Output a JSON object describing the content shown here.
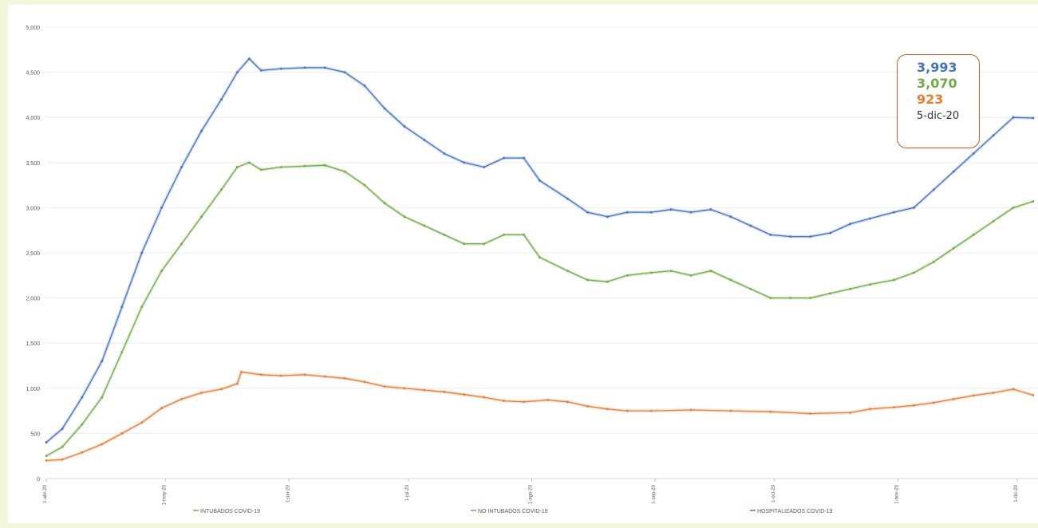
{
  "chart_data": {
    "type": "line",
    "title": "",
    "xlabel": "",
    "ylabel": "",
    "ylim": [
      0,
      5000
    ],
    "y_ticks": [
      "0",
      "500",
      "1,000",
      "1,500",
      "2,000",
      "2,500",
      "3,000",
      "3,500",
      "4,000",
      "4,500",
      "5,000"
    ],
    "y_tick_values": [
      0,
      500,
      1000,
      1500,
      2000,
      2500,
      3000,
      3500,
      4000,
      4500,
      5000
    ],
    "grid": true,
    "legend_position": "bottom",
    "x_tick_labels": [
      "1-abr-20",
      "1-may-20",
      "1-jun-20",
      "1-jul-20",
      "1-ago-20",
      "1-sep-20",
      "1-oct-20",
      "1-nov-20",
      "1-dic-20"
    ],
    "x_tick_dates": [
      "2020-04-01",
      "2020-05-01",
      "2020-06-01",
      "2020-07-01",
      "2020-08-01",
      "2020-09-01",
      "2020-10-01",
      "2020-11-01",
      "2020-12-01"
    ],
    "x_range": [
      "2020-04-01",
      "2020-12-05"
    ],
    "series": [
      {
        "name": "INTUBADOS COVID-19",
        "color": "#ed7d31",
        "points": [
          [
            "2020-04-01",
            200
          ],
          [
            "2020-04-05",
            210
          ],
          [
            "2020-04-10",
            290
          ],
          [
            "2020-04-15",
            380
          ],
          [
            "2020-04-20",
            500
          ],
          [
            "2020-04-25",
            620
          ],
          [
            "2020-04-30",
            780
          ],
          [
            "2020-05-05",
            880
          ],
          [
            "2020-05-10",
            950
          ],
          [
            "2020-05-15",
            990
          ],
          [
            "2020-05-19",
            1050
          ],
          [
            "2020-05-20",
            1180
          ],
          [
            "2020-05-25",
            1150
          ],
          [
            "2020-05-30",
            1140
          ],
          [
            "2020-06-05",
            1150
          ],
          [
            "2020-06-10",
            1130
          ],
          [
            "2020-06-15",
            1110
          ],
          [
            "2020-06-20",
            1070
          ],
          [
            "2020-06-25",
            1020
          ],
          [
            "2020-06-30",
            1000
          ],
          [
            "2020-07-05",
            980
          ],
          [
            "2020-07-10",
            960
          ],
          [
            "2020-07-15",
            930
          ],
          [
            "2020-07-20",
            900
          ],
          [
            "2020-07-25",
            860
          ],
          [
            "2020-07-30",
            850
          ],
          [
            "2020-08-05",
            870
          ],
          [
            "2020-08-10",
            850
          ],
          [
            "2020-08-15",
            800
          ],
          [
            "2020-08-20",
            770
          ],
          [
            "2020-08-25",
            750
          ],
          [
            "2020-08-31",
            750
          ],
          [
            "2020-09-10",
            760
          ],
          [
            "2020-09-20",
            750
          ],
          [
            "2020-09-30",
            740
          ],
          [
            "2020-10-10",
            720
          ],
          [
            "2020-10-20",
            730
          ],
          [
            "2020-10-25",
            770
          ],
          [
            "2020-10-31",
            790
          ],
          [
            "2020-11-05",
            810
          ],
          [
            "2020-11-10",
            840
          ],
          [
            "2020-11-15",
            880
          ],
          [
            "2020-11-20",
            920
          ],
          [
            "2020-11-25",
            950
          ],
          [
            "2020-11-30",
            990
          ],
          [
            "2020-12-05",
            923
          ]
        ]
      },
      {
        "name": "NO INTUBADOS COVID-19",
        "color": "#70ad47",
        "points": [
          [
            "2020-04-01",
            250
          ],
          [
            "2020-04-05",
            350
          ],
          [
            "2020-04-10",
            600
          ],
          [
            "2020-04-15",
            900
          ],
          [
            "2020-04-20",
            1400
          ],
          [
            "2020-04-25",
            1900
          ],
          [
            "2020-04-30",
            2300
          ],
          [
            "2020-05-05",
            2600
          ],
          [
            "2020-05-10",
            2900
          ],
          [
            "2020-05-15",
            3200
          ],
          [
            "2020-05-19",
            3450
          ],
          [
            "2020-05-22",
            3500
          ],
          [
            "2020-05-25",
            3420
          ],
          [
            "2020-05-30",
            3450
          ],
          [
            "2020-06-05",
            3460
          ],
          [
            "2020-06-10",
            3470
          ],
          [
            "2020-06-15",
            3400
          ],
          [
            "2020-06-20",
            3250
          ],
          [
            "2020-06-25",
            3050
          ],
          [
            "2020-06-30",
            2900
          ],
          [
            "2020-07-05",
            2800
          ],
          [
            "2020-07-10",
            2700
          ],
          [
            "2020-07-15",
            2600
          ],
          [
            "2020-07-20",
            2600
          ],
          [
            "2020-07-25",
            2700
          ],
          [
            "2020-07-30",
            2700
          ],
          [
            "2020-08-03",
            2450
          ],
          [
            "2020-08-10",
            2300
          ],
          [
            "2020-08-15",
            2200
          ],
          [
            "2020-08-20",
            2180
          ],
          [
            "2020-08-25",
            2250
          ],
          [
            "2020-08-31",
            2280
          ],
          [
            "2020-09-05",
            2300
          ],
          [
            "2020-09-10",
            2250
          ],
          [
            "2020-09-15",
            2300
          ],
          [
            "2020-09-20",
            2200
          ],
          [
            "2020-09-25",
            2100
          ],
          [
            "2020-09-30",
            2000
          ],
          [
            "2020-10-05",
            2000
          ],
          [
            "2020-10-10",
            2000
          ],
          [
            "2020-10-15",
            2050
          ],
          [
            "2020-10-20",
            2100
          ],
          [
            "2020-10-25",
            2150
          ],
          [
            "2020-10-31",
            2200
          ],
          [
            "2020-11-05",
            2280
          ],
          [
            "2020-11-10",
            2400
          ],
          [
            "2020-11-15",
            2550
          ],
          [
            "2020-11-20",
            2700
          ],
          [
            "2020-11-25",
            2850
          ],
          [
            "2020-11-30",
            3000
          ],
          [
            "2020-12-05",
            3070
          ]
        ]
      },
      {
        "name": "HOSPITALIZADOS COVID-19",
        "color": "#4472c4",
        "points": [
          [
            "2020-04-01",
            400
          ],
          [
            "2020-04-05",
            550
          ],
          [
            "2020-04-10",
            900
          ],
          [
            "2020-04-15",
            1300
          ],
          [
            "2020-04-20",
            1900
          ],
          [
            "2020-04-25",
            2500
          ],
          [
            "2020-04-30",
            3000
          ],
          [
            "2020-05-05",
            3450
          ],
          [
            "2020-05-10",
            3850
          ],
          [
            "2020-05-15",
            4200
          ],
          [
            "2020-05-19",
            4500
          ],
          [
            "2020-05-22",
            4650
          ],
          [
            "2020-05-25",
            4520
          ],
          [
            "2020-05-30",
            4540
          ],
          [
            "2020-06-05",
            4550
          ],
          [
            "2020-06-10",
            4550
          ],
          [
            "2020-06-15",
            4500
          ],
          [
            "2020-06-20",
            4350
          ],
          [
            "2020-06-25",
            4100
          ],
          [
            "2020-06-30",
            3900
          ],
          [
            "2020-07-05",
            3750
          ],
          [
            "2020-07-10",
            3600
          ],
          [
            "2020-07-15",
            3500
          ],
          [
            "2020-07-20",
            3450
          ],
          [
            "2020-07-25",
            3550
          ],
          [
            "2020-07-30",
            3550
          ],
          [
            "2020-08-03",
            3300
          ],
          [
            "2020-08-10",
            3100
          ],
          [
            "2020-08-15",
            2950
          ],
          [
            "2020-08-20",
            2900
          ],
          [
            "2020-08-25",
            2950
          ],
          [
            "2020-08-31",
            2950
          ],
          [
            "2020-09-05",
            2980
          ],
          [
            "2020-09-10",
            2950
          ],
          [
            "2020-09-15",
            2980
          ],
          [
            "2020-09-20",
            2900
          ],
          [
            "2020-09-25",
            2800
          ],
          [
            "2020-09-30",
            2700
          ],
          [
            "2020-10-05",
            2680
          ],
          [
            "2020-10-10",
            2680
          ],
          [
            "2020-10-15",
            2720
          ],
          [
            "2020-10-20",
            2820
          ],
          [
            "2020-10-25",
            2880
          ],
          [
            "2020-10-31",
            2950
          ],
          [
            "2020-11-05",
            3000
          ],
          [
            "2020-11-10",
            3200
          ],
          [
            "2020-11-15",
            3400
          ],
          [
            "2020-11-20",
            3600
          ],
          [
            "2020-11-25",
            3800
          ],
          [
            "2020-11-30",
            4000
          ],
          [
            "2020-12-05",
            3993
          ]
        ]
      }
    ],
    "callout": {
      "hospitalizados": "3,993",
      "no_intubados": "3,070",
      "intubados": "923",
      "date": "5-dic-20",
      "hospitalizados_color": "#4472c4",
      "no_intubados_color": "#70ad47",
      "intubados_color": "#ed7d31"
    }
  }
}
